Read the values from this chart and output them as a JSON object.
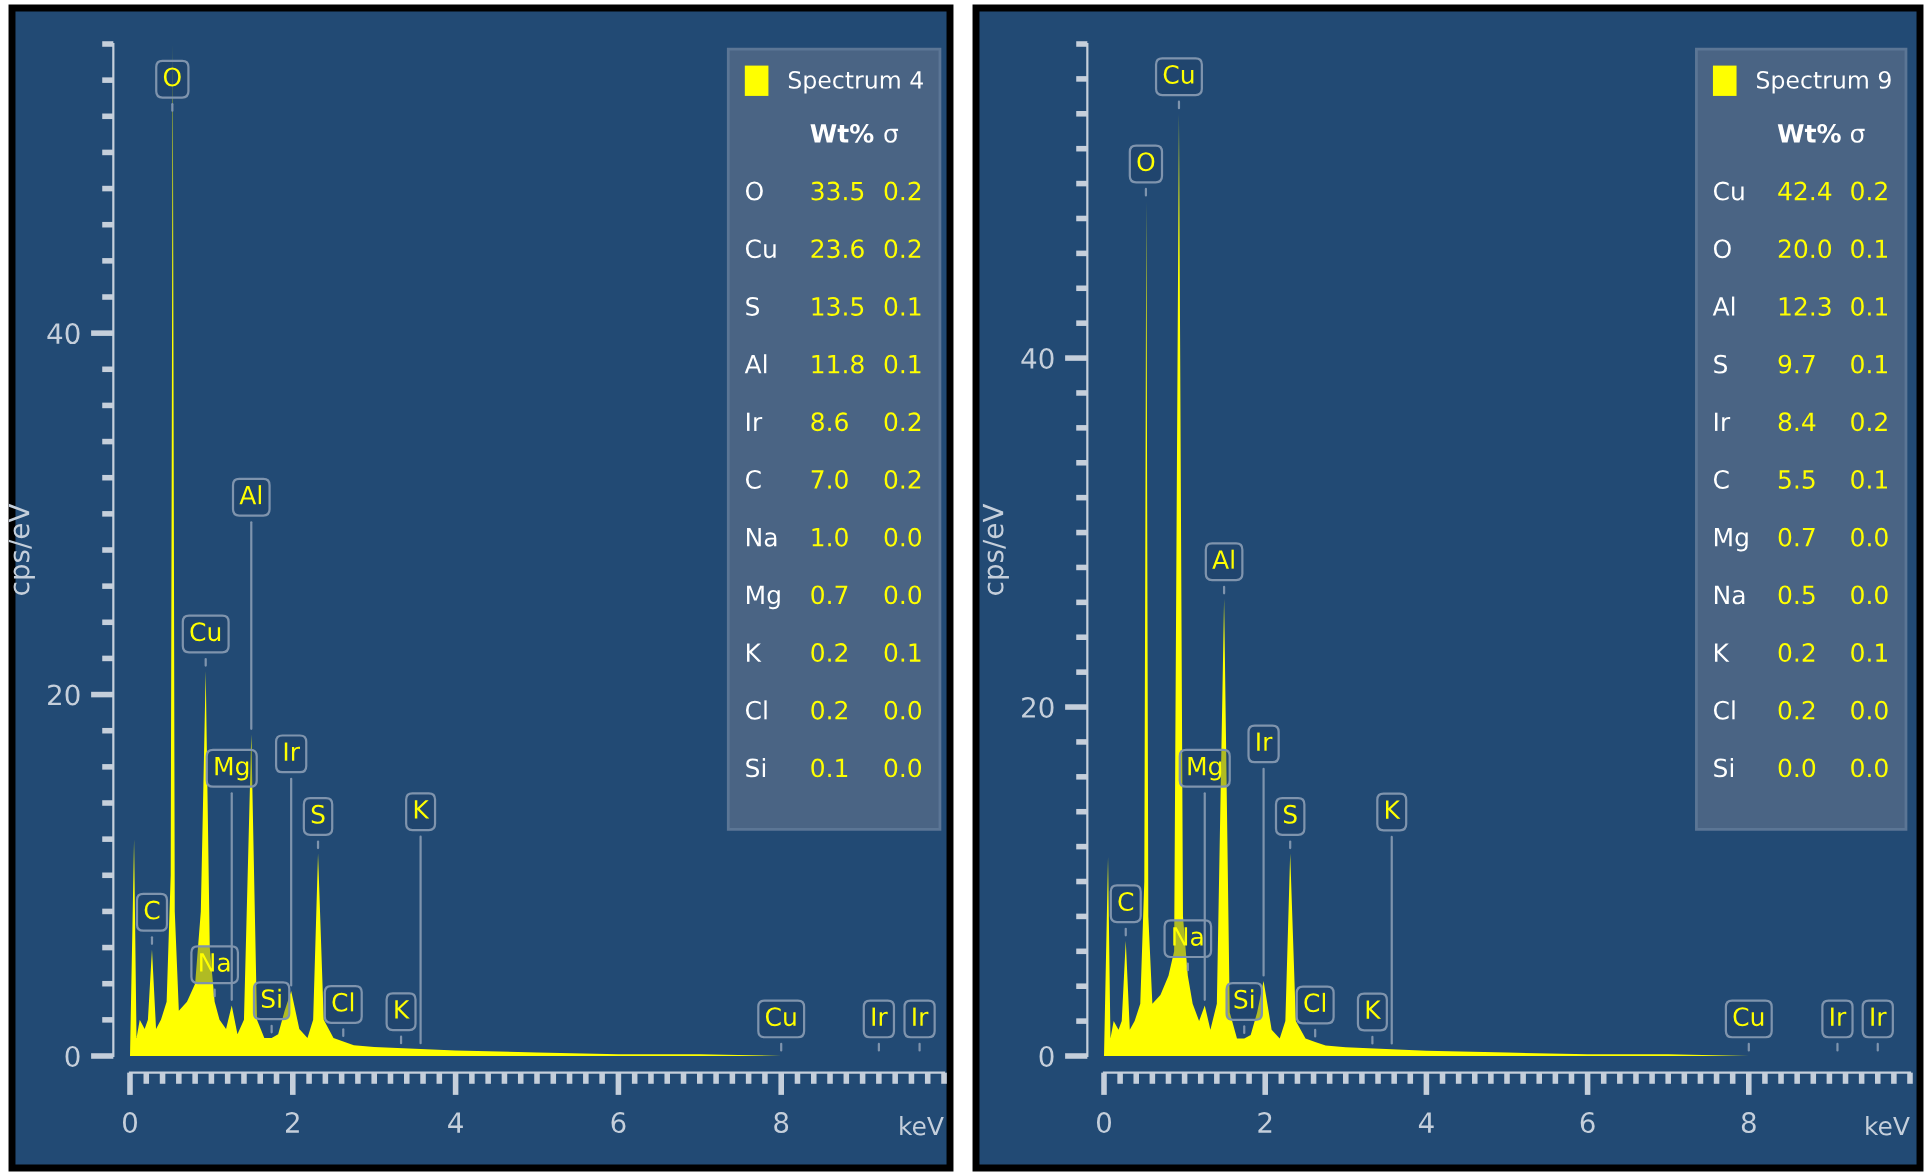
{
  "chart_data": [
    {
      "type": "area",
      "xlabel": "keV",
      "ylabel": "cps/eV",
      "xlim": [
        0,
        10
      ],
      "ylim": [
        0,
        56
      ],
      "xticks": [
        0,
        2,
        4,
        6,
        8
      ],
      "yticks": [
        0,
        20,
        40
      ],
      "legend": "top right",
      "grid": false,
      "series": [
        {
          "name": "Spectrum 4",
          "color": "#ffff00",
          "x": [
            0,
            0.05,
            0.08,
            0.12,
            0.18,
            0.22,
            0.27,
            0.32,
            0.38,
            0.45,
            0.5,
            0.525,
            0.55,
            0.6,
            0.7,
            0.8,
            0.87,
            0.93,
            0.98,
            1.04,
            1.1,
            1.18,
            1.25,
            1.32,
            1.4,
            1.49,
            1.56,
            1.65,
            1.74,
            1.82,
            1.9,
            1.98,
            2.08,
            2.18,
            2.25,
            2.31,
            2.38,
            2.5,
            2.62,
            2.75,
            3.0,
            3.5,
            4,
            5,
            6,
            7,
            8,
            9.2,
            9.7
          ],
          "values": [
            0,
            12,
            1,
            2,
            1.5,
            2,
            5.9,
            1.5,
            2,
            3,
            10,
            56,
            8,
            2.5,
            3,
            4,
            8,
            21.3,
            6,
            3,
            2,
            1.5,
            2.8,
            1.2,
            2,
            17.8,
            2,
            1,
            1,
            1.2,
            2.5,
            3.6,
            1.5,
            1,
            2,
            11.2,
            2,
            1,
            0.8,
            0.6,
            0.5,
            0.4,
            0.3,
            0.2,
            0.1,
            0.1,
            0,
            0,
            0
          ]
        }
      ],
      "annotations": [
        {
          "text": "C",
          "x": 0.27,
          "y": 5.9
        },
        {
          "text": "O",
          "x": 0.52,
          "y": 52
        },
        {
          "text": "Cu",
          "x": 0.93,
          "y": 21.3
        },
        {
          "text": "Na",
          "x": 1.04,
          "y": 3
        },
        {
          "text": "Mg",
          "x": 1.25,
          "y": 2.8
        },
        {
          "text": "Al",
          "x": 1.49,
          "y": 17.8
        },
        {
          "text": "Si",
          "x": 1.74,
          "y": 1
        },
        {
          "text": "Ir",
          "x": 1.98,
          "y": 3.6
        },
        {
          "text": "S",
          "x": 2.31,
          "y": 11.2
        },
        {
          "text": "Cl",
          "x": 2.62,
          "y": 0.8
        },
        {
          "text": "K",
          "x": 3.33,
          "y": 0.4
        },
        {
          "text": "K",
          "x": 3.57,
          "y": 0.4
        },
        {
          "text": "Cu",
          "x": 8,
          "y": 0
        },
        {
          "text": "Ir",
          "x": 9.2,
          "y": 0
        },
        {
          "text": "Ir",
          "x": 9.7,
          "y": 0
        },
        "Wt% σ",
        "O 33.5 0.2",
        "Cu 23.6 0.2",
        "S 13.5 0.1",
        "Al 11.8 0.1",
        "Ir 8.6 0.2",
        "C 7.0 0.2",
        "Na 1.0 0.0",
        "Mg 0.7 0.0",
        "K 0.2 0.1",
        "Cl 0.2 0.0",
        "Si 0.1 0.0"
      ]
    },
    {
      "type": "area",
      "xlabel": "keV",
      "ylabel": "cps/eV",
      "xlim": [
        0,
        10
      ],
      "ylim": [
        0,
        58
      ],
      "xticks": [
        0,
        2,
        4,
        6,
        8
      ],
      "yticks": [
        0,
        20,
        40
      ],
      "legend": "top right",
      "grid": false,
      "series": [
        {
          "name": "Spectrum 9",
          "color": "#ffff00",
          "x": [
            0,
            0.05,
            0.08,
            0.12,
            0.18,
            0.22,
            0.27,
            0.32,
            0.38,
            0.45,
            0.5,
            0.525,
            0.55,
            0.6,
            0.7,
            0.8,
            0.87,
            0.93,
            0.98,
            1.04,
            1.1,
            1.18,
            1.25,
            1.32,
            1.4,
            1.49,
            1.56,
            1.65,
            1.74,
            1.82,
            1.9,
            1.98,
            2.08,
            2.18,
            2.25,
            2.31,
            2.38,
            2.5,
            2.62,
            2.75,
            3.0,
            3.5,
            4,
            5,
            6,
            7,
            8,
            9.1,
            9.6
          ],
          "values": [
            0,
            11.4,
            1,
            2,
            1.5,
            2,
            6.6,
            1.5,
            2,
            3,
            10,
            49,
            8,
            3,
            3.5,
            4.6,
            6,
            54,
            8,
            4.6,
            3,
            2,
            2.9,
            1.5,
            3,
            26.2,
            2.5,
            1,
            1,
            1.2,
            2.5,
            4.3,
            1.5,
            1,
            2,
            11.6,
            2,
            1,
            0.8,
            0.6,
            0.5,
            0.4,
            0.3,
            0.2,
            0.1,
            0.1,
            0,
            0,
            0
          ]
        }
      ],
      "annotations": [
        {
          "text": "C",
          "x": 0.27,
          "y": 6.6
        },
        {
          "text": "O",
          "x": 0.52,
          "y": 49
        },
        {
          "text": "Cu",
          "x": 0.93,
          "y": 54
        },
        {
          "text": "Na",
          "x": 1.04,
          "y": 4.6
        },
        {
          "text": "Mg",
          "x": 1.25,
          "y": 2.9
        },
        {
          "text": "Al",
          "x": 1.49,
          "y": 26.2
        },
        {
          "text": "Si",
          "x": 1.74,
          "y": 1
        },
        {
          "text": "Ir",
          "x": 1.98,
          "y": 4.3
        },
        {
          "text": "S",
          "x": 2.31,
          "y": 11.6
        },
        {
          "text": "Cl",
          "x": 2.62,
          "y": 0.8
        },
        {
          "text": "K",
          "x": 3.33,
          "y": 0.4
        },
        {
          "text": "K",
          "x": 3.57,
          "y": 0.4
        },
        {
          "text": "Cu",
          "x": 8,
          "y": 0
        },
        {
          "text": "Ir",
          "x": 9.1,
          "y": 0
        },
        {
          "text": "Ir",
          "x": 9.6,
          "y": 0
        },
        "Wt% σ",
        "Cu 42.4 0.2",
        "O 20.0 0.1",
        "Al 12.3 0.1",
        "S 9.7 0.1",
        "Ir 8.4 0.2",
        "C 5.5 0.1",
        "Mg 0.7 0.0",
        "Na 0.5 0.0",
        "K 0.2 0.1",
        "Cl 0.2 0.0",
        "Si 0.0 0.0"
      ]
    }
  ]
}
